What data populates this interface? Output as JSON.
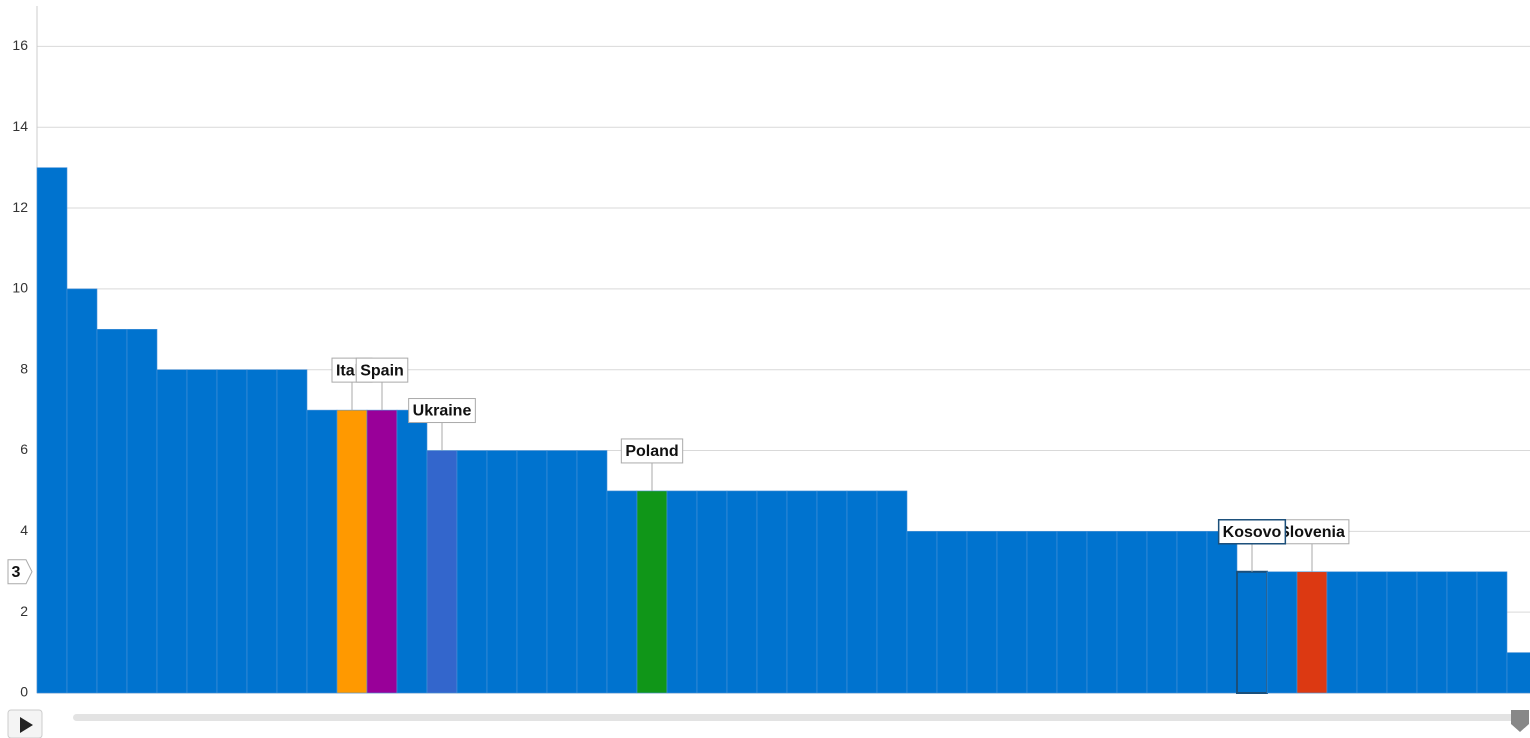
{
  "chart_data": {
    "type": "bar",
    "categories": [
      null,
      null,
      null,
      null,
      null,
      null,
      null,
      null,
      null,
      null,
      "Italy",
      "Spain",
      null,
      "Ukraine",
      null,
      null,
      null,
      null,
      null,
      null,
      "Poland",
      null,
      null,
      null,
      null,
      null,
      null,
      null,
      null,
      null,
      null,
      null,
      null,
      null,
      null,
      null,
      null,
      null,
      null,
      null,
      "Kosovo",
      null,
      "Slovenia",
      null,
      null,
      null,
      null,
      null,
      null,
      null
    ],
    "values": [
      13,
      10,
      9,
      9,
      8,
      8,
      8,
      8,
      8,
      7,
      7,
      7,
      7,
      6,
      6,
      6,
      6,
      6,
      6,
      5,
      5,
      5,
      5,
      5,
      5,
      5,
      5,
      5,
      5,
      4,
      4,
      4,
      4,
      4,
      4,
      4,
      4,
      4,
      4,
      4,
      3,
      3,
      3,
      3,
      3,
      3,
      3,
      3,
      3,
      1
    ],
    "colors": [
      "#0073cf",
      "#0073cf",
      "#0073cf",
      "#0073cf",
      "#0073cf",
      "#0073cf",
      "#0073cf",
      "#0073cf",
      "#0073cf",
      "#0073cf",
      "#ff9900",
      "#990099",
      "#0073cf",
      "#3366cc",
      "#0073cf",
      "#0073cf",
      "#0073cf",
      "#0073cf",
      "#0073cf",
      "#0073cf",
      "#109618",
      "#0073cf",
      "#0073cf",
      "#0073cf",
      "#0073cf",
      "#0073cf",
      "#0073cf",
      "#0073cf",
      "#0073cf",
      "#0073cf",
      "#0073cf",
      "#0073cf",
      "#0073cf",
      "#0073cf",
      "#0073cf",
      "#0073cf",
      "#0073cf",
      "#0073cf",
      "#0073cf",
      "#0073cf",
      "#0073cf",
      "#0073cf",
      "#dc3912",
      "#0073cf",
      "#0073cf",
      "#0073cf",
      "#0073cf",
      "#0073cf",
      "#0073cf",
      "#0073cf"
    ],
    "highlighted": "Kosovo",
    "hover_value": 3,
    "ylim": [
      0,
      17
    ],
    "yticks": [
      0,
      2,
      4,
      6,
      8,
      10,
      12,
      14,
      16
    ],
    "grid": true
  }
}
